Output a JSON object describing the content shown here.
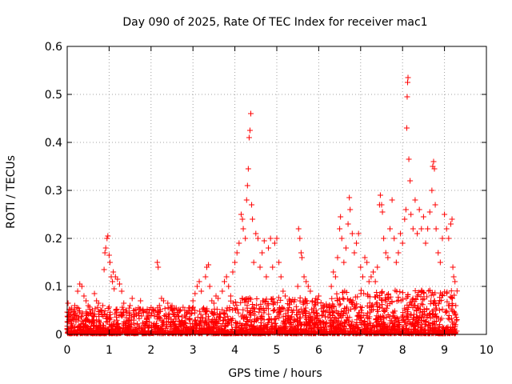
{
  "chart_data": {
    "type": "scatter",
    "title": "Day 090 of 2025, Rate Of TEC Index for receiver mac1",
    "xlabel": "GPS time / hours",
    "ylabel": "ROTI / TECUs",
    "xlim": [
      0,
      10
    ],
    "ylim": [
      0,
      0.6
    ],
    "x_ticks": [
      "0",
      "1",
      "2",
      "3",
      "4",
      "5",
      "6",
      "7",
      "8",
      "9",
      "10"
    ],
    "y_ticks": [
      "0",
      "0.1",
      "0.2",
      "0.3",
      "0.4",
      "0.5",
      "0.6"
    ],
    "grid": true,
    "marker": "+",
    "color": "#ff0000",
    "series": [
      {
        "name": "ROTI",
        "points": [
          [
            0.02,
            0.065
          ],
          [
            0.05,
            0.04
          ],
          [
            0.1,
            0.055
          ],
          [
            0.18,
            0.06
          ],
          [
            0.25,
            0.09
          ],
          [
            0.3,
            0.105
          ],
          [
            0.35,
            0.1
          ],
          [
            0.4,
            0.08
          ],
          [
            0.45,
            0.07
          ],
          [
            0.5,
            0.06
          ],
          [
            0.55,
            0.045
          ],
          [
            0.6,
            0.05
          ],
          [
            0.65,
            0.085
          ],
          [
            0.7,
            0.07
          ],
          [
            0.75,
            0.065
          ],
          [
            0.8,
            0.05
          ],
          [
            0.85,
            0.06
          ],
          [
            0.88,
            0.135
          ],
          [
            0.9,
            0.17
          ],
          [
            0.92,
            0.18
          ],
          [
            0.95,
            0.2
          ],
          [
            0.97,
            0.205
          ],
          [
            1.0,
            0.165
          ],
          [
            1.02,
            0.15
          ],
          [
            1.05,
            0.12
          ],
          [
            1.08,
            0.11
          ],
          [
            1.1,
            0.13
          ],
          [
            1.12,
            0.095
          ],
          [
            1.15,
            0.12
          ],
          [
            1.2,
            0.115
          ],
          [
            1.25,
            0.105
          ],
          [
            1.3,
            0.09
          ],
          [
            1.35,
            0.065
          ],
          [
            1.4,
            0.05
          ],
          [
            1.5,
            0.06
          ],
          [
            1.55,
            0.075
          ],
          [
            1.6,
            0.05
          ],
          [
            1.7,
            0.045
          ],
          [
            1.75,
            0.07
          ],
          [
            1.8,
            0.05
          ],
          [
            1.9,
            0.035
          ],
          [
            2.0,
            0.04
          ],
          [
            2.1,
            0.05
          ],
          [
            2.15,
            0.15
          ],
          [
            2.17,
            0.14
          ],
          [
            2.2,
            0.06
          ],
          [
            2.25,
            0.075
          ],
          [
            2.3,
            0.07
          ],
          [
            2.4,
            0.065
          ],
          [
            2.5,
            0.06
          ],
          [
            2.6,
            0.055
          ],
          [
            2.7,
            0.05
          ],
          [
            2.8,
            0.04
          ],
          [
            2.9,
            0.055
          ],
          [
            3.0,
            0.07
          ],
          [
            3.05,
            0.085
          ],
          [
            3.1,
            0.1
          ],
          [
            3.15,
            0.11
          ],
          [
            3.2,
            0.09
          ],
          [
            3.3,
            0.12
          ],
          [
            3.33,
            0.14
          ],
          [
            3.37,
            0.145
          ],
          [
            3.4,
            0.1
          ],
          [
            3.45,
            0.07
          ],
          [
            3.5,
            0.065
          ],
          [
            3.55,
            0.08
          ],
          [
            3.6,
            0.075
          ],
          [
            3.7,
            0.09
          ],
          [
            3.75,
            0.11
          ],
          [
            3.8,
            0.12
          ],
          [
            3.85,
            0.1
          ],
          [
            3.9,
            0.08
          ],
          [
            3.95,
            0.13
          ],
          [
            4.0,
            0.15
          ],
          [
            4.05,
            0.17
          ],
          [
            4.1,
            0.19
          ],
          [
            4.15,
            0.25
          ],
          [
            4.18,
            0.24
          ],
          [
            4.2,
            0.22
          ],
          [
            4.25,
            0.2
          ],
          [
            4.28,
            0.28
          ],
          [
            4.3,
            0.31
          ],
          [
            4.32,
            0.345
          ],
          [
            4.34,
            0.41
          ],
          [
            4.36,
            0.425
          ],
          [
            4.38,
            0.46
          ],
          [
            4.4,
            0.27
          ],
          [
            4.42,
            0.24
          ],
          [
            4.45,
            0.15
          ],
          [
            4.5,
            0.21
          ],
          [
            4.55,
            0.2
          ],
          [
            4.6,
            0.14
          ],
          [
            4.65,
            0.17
          ],
          [
            4.7,
            0.195
          ],
          [
            4.75,
            0.12
          ],
          [
            4.8,
            0.18
          ],
          [
            4.85,
            0.2
          ],
          [
            4.9,
            0.14
          ],
          [
            4.95,
            0.19
          ],
          [
            5.0,
            0.2
          ],
          [
            5.05,
            0.15
          ],
          [
            5.1,
            0.12
          ],
          [
            5.15,
            0.09
          ],
          [
            5.2,
            0.08
          ],
          [
            5.3,
            0.07
          ],
          [
            5.4,
            0.05
          ],
          [
            5.5,
            0.1
          ],
          [
            5.52,
            0.22
          ],
          [
            5.55,
            0.2
          ],
          [
            5.58,
            0.17
          ],
          [
            5.6,
            0.16
          ],
          [
            5.65,
            0.12
          ],
          [
            5.7,
            0.11
          ],
          [
            5.75,
            0.1
          ],
          [
            5.8,
            0.09
          ],
          [
            5.85,
            0.07
          ],
          [
            5.9,
            0.06
          ],
          [
            6.0,
            0.08
          ],
          [
            6.1,
            0.06
          ],
          [
            6.2,
            0.05
          ],
          [
            6.3,
            0.1
          ],
          [
            6.35,
            0.13
          ],
          [
            6.4,
            0.12
          ],
          [
            6.45,
            0.16
          ],
          [
            6.5,
            0.22
          ],
          [
            6.52,
            0.245
          ],
          [
            6.55,
            0.2
          ],
          [
            6.6,
            0.15
          ],
          [
            6.65,
            0.18
          ],
          [
            6.7,
            0.23
          ],
          [
            6.73,
            0.285
          ],
          [
            6.75,
            0.26
          ],
          [
            6.8,
            0.21
          ],
          [
            6.85,
            0.17
          ],
          [
            6.9,
            0.19
          ],
          [
            6.95,
            0.21
          ],
          [
            7.0,
            0.14
          ],
          [
            7.05,
            0.12
          ],
          [
            7.1,
            0.16
          ],
          [
            7.15,
            0.15
          ],
          [
            7.2,
            0.11
          ],
          [
            7.25,
            0.12
          ],
          [
            7.3,
            0.13
          ],
          [
            7.35,
            0.11
          ],
          [
            7.4,
            0.14
          ],
          [
            7.45,
            0.27
          ],
          [
            7.47,
            0.29
          ],
          [
            7.5,
            0.27
          ],
          [
            7.52,
            0.255
          ],
          [
            7.55,
            0.2
          ],
          [
            7.6,
            0.17
          ],
          [
            7.65,
            0.16
          ],
          [
            7.7,
            0.22
          ],
          [
            7.75,
            0.28
          ],
          [
            7.8,
            0.2
          ],
          [
            7.85,
            0.15
          ],
          [
            7.9,
            0.17
          ],
          [
            7.95,
            0.21
          ],
          [
            8.0,
            0.19
          ],
          [
            8.05,
            0.24
          ],
          [
            8.08,
            0.26
          ],
          [
            8.1,
            0.43
          ],
          [
            8.11,
            0.495
          ],
          [
            8.12,
            0.525
          ],
          [
            8.13,
            0.535
          ],
          [
            8.15,
            0.365
          ],
          [
            8.18,
            0.32
          ],
          [
            8.2,
            0.25
          ],
          [
            8.25,
            0.22
          ],
          [
            8.3,
            0.28
          ],
          [
            8.35,
            0.21
          ],
          [
            8.4,
            0.26
          ],
          [
            8.45,
            0.22
          ],
          [
            8.5,
            0.245
          ],
          [
            8.55,
            0.19
          ],
          [
            8.6,
            0.22
          ],
          [
            8.65,
            0.255
          ],
          [
            8.7,
            0.3
          ],
          [
            8.72,
            0.35
          ],
          [
            8.74,
            0.36
          ],
          [
            8.76,
            0.345
          ],
          [
            8.78,
            0.27
          ],
          [
            8.8,
            0.22
          ],
          [
            8.85,
            0.17
          ],
          [
            8.9,
            0.15
          ],
          [
            8.95,
            0.2
          ],
          [
            9.0,
            0.25
          ],
          [
            9.05,
            0.22
          ],
          [
            9.1,
            0.2
          ],
          [
            9.15,
            0.23
          ],
          [
            9.18,
            0.24
          ],
          [
            9.2,
            0.14
          ],
          [
            9.22,
            0.12
          ],
          [
            9.25,
            0.11
          ],
          [
            9.27,
            0.06
          ]
        ]
      }
    ]
  }
}
